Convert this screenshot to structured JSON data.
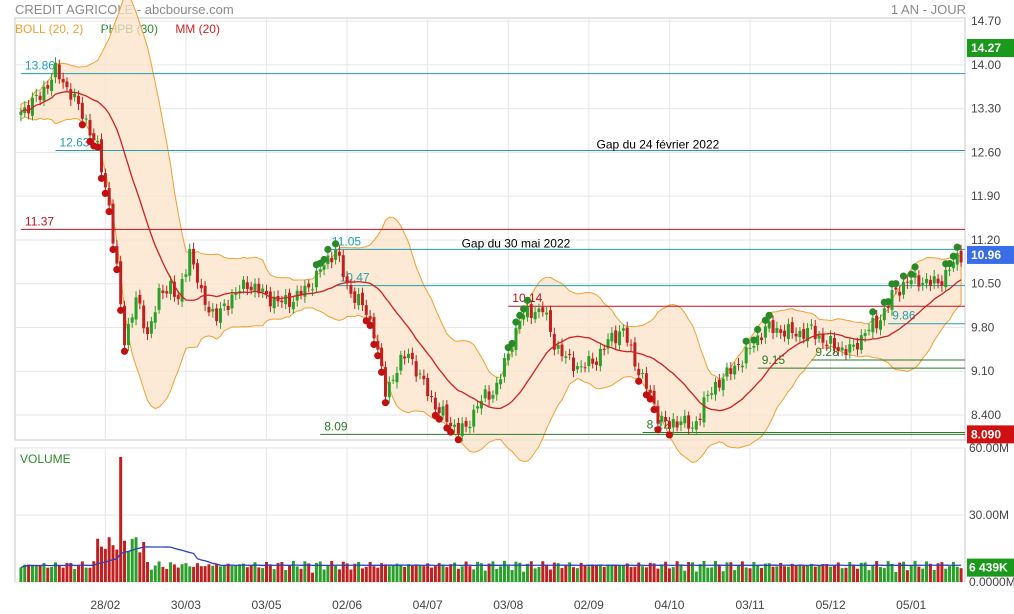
{
  "header": {
    "title": "CREDIT AGRICOLE - abcbourse.com",
    "period": "1 AN - JOUR"
  },
  "legend": [
    {
      "label": "BOLL (20, 2)",
      "color": "#f0a030"
    },
    {
      "label": "PHPB (30)",
      "color": "#2a8a2a"
    },
    {
      "label": "MM (20)",
      "color": "#d02020"
    }
  ],
  "chart_data": [
    {
      "type": "line",
      "name": "price",
      "ylim": [
        8.0,
        14.75
      ],
      "price_ticks": [
        "14.70",
        "14.00",
        "13.30",
        "12.60",
        "11.90",
        "11.20",
        "10.50",
        "9.80",
        "9.10",
        "8.400"
      ],
      "price_tick_values": [
        14.7,
        14.0,
        13.3,
        12.6,
        11.9,
        11.2,
        10.5,
        9.8,
        9.1,
        8.4
      ],
      "x_tick_labels": [
        "28/02",
        "30/03",
        "03/05",
        "02/06",
        "04/07",
        "03/08",
        "02/09",
        "04/10",
        "03/11",
        "05/12",
        "05/01"
      ],
      "x_tick_index": [
        22,
        43,
        64,
        85,
        106,
        127,
        148,
        169,
        190,
        211,
        232
      ],
      "n_sessions": 246,
      "close_anchors": [
        [
          0,
          13.25
        ],
        [
          5,
          13.5
        ],
        [
          9,
          13.9
        ],
        [
          13,
          13.55
        ],
        [
          17,
          13.1
        ],
        [
          20,
          12.65
        ],
        [
          23,
          11.75
        ],
        [
          25,
          10.7
        ],
        [
          27,
          9.6
        ],
        [
          30,
          10.25
        ],
        [
          33,
          9.7
        ],
        [
          36,
          10.3
        ],
        [
          39,
          10.5
        ],
        [
          41,
          10.2
        ],
        [
          44,
          11.05
        ],
        [
          47,
          10.3
        ],
        [
          51,
          9.95
        ],
        [
          55,
          10.3
        ],
        [
          59,
          10.5
        ],
        [
          63,
          10.35
        ],
        [
          67,
          10.2
        ],
        [
          71,
          10.25
        ],
        [
          75,
          10.45
        ],
        [
          79,
          10.8
        ],
        [
          82,
          11.05
        ],
        [
          85,
          10.45
        ],
        [
          89,
          10.15
        ],
        [
          92,
          9.75
        ],
        [
          95,
          8.75
        ],
        [
          98,
          9.15
        ],
        [
          101,
          9.4
        ],
        [
          104,
          9.0
        ],
        [
          108,
          8.55
        ],
        [
          112,
          8.25
        ],
        [
          116,
          8.15
        ],
        [
          119,
          8.6
        ],
        [
          123,
          8.75
        ],
        [
          127,
          9.35
        ],
        [
          130,
          9.95
        ],
        [
          133,
          10.05
        ],
        [
          136,
          10.1
        ],
        [
          139,
          9.55
        ],
        [
          142,
          9.3
        ],
        [
          146,
          9.15
        ],
        [
          150,
          9.3
        ],
        [
          154,
          9.65
        ],
        [
          157,
          9.75
        ],
        [
          160,
          9.25
        ],
        [
          163,
          8.85
        ],
        [
          166,
          8.4
        ],
        [
          169,
          8.2
        ],
        [
          172,
          8.35
        ],
        [
          175,
          8.15
        ],
        [
          178,
          8.6
        ],
        [
          182,
          8.95
        ],
        [
          186,
          9.15
        ],
        [
          190,
          9.45
        ],
        [
          194,
          9.8
        ],
        [
          198,
          9.75
        ],
        [
          202,
          9.7
        ],
        [
          206,
          9.75
        ],
        [
          210,
          9.55
        ],
        [
          214,
          9.45
        ],
        [
          217,
          9.45
        ],
        [
          220,
          9.75
        ],
        [
          223,
          9.85
        ],
        [
          227,
          10.3
        ],
        [
          231,
          10.55
        ],
        [
          235,
          10.55
        ],
        [
          239,
          10.5
        ],
        [
          242,
          10.75
        ],
        [
          245,
          10.96
        ]
      ],
      "last_price": {
        "label": "14.27",
        "value": 14.27,
        "color": "#1a9a1a"
      },
      "current_price": {
        "label": "10.96",
        "value": 10.96,
        "color": "#3a6ee8"
      },
      "low_price": {
        "label": "8.090",
        "value": 8.09,
        "color": "#d01010"
      },
      "levels": [
        {
          "label": "13.86",
          "value": 13.86,
          "color": "#20a0b0",
          "from": 0
        },
        {
          "label": "12.63",
          "value": 12.63,
          "color": "#20a0b0",
          "from": 9
        },
        {
          "label": "11.37",
          "value": 11.37,
          "color": "#c01020",
          "from": 0
        },
        {
          "label": "11.05",
          "value": 11.05,
          "color": "#20a0b0",
          "from": 80
        },
        {
          "label": "10.47",
          "value": 10.47,
          "color": "#20a0b0",
          "from": 82
        },
        {
          "label": "10.14",
          "value": 10.14,
          "color": "#c01020",
          "from": 127
        },
        {
          "label": "9.86",
          "value": 9.86,
          "color": "#20a0b0",
          "from": 226
        },
        {
          "label": "9.28",
          "value": 9.28,
          "color": "#2a7a2a",
          "from": 206
        },
        {
          "label": "9.15",
          "value": 9.15,
          "color": "#2a7a2a",
          "from": 192
        },
        {
          "label": "8.12",
          "value": 8.12,
          "color": "#2a7a2a",
          "from": 162
        },
        {
          "label": "8.09",
          "value": 8.09,
          "color": "#2a7a2a",
          "from": 78
        }
      ],
      "annotations": [
        {
          "text": "Gap du 24 février 2022",
          "x_index": 166,
          "value": 12.63
        },
        {
          "text": "Gap du 30 mai 2022",
          "x_index": 129,
          "value": 11.05
        }
      ]
    },
    {
      "type": "bar",
      "name": "VOLUME",
      "ylim": [
        0,
        60
      ],
      "volume_ticks": [
        "60.00M",
        "30.00M",
        "0.0000M"
      ],
      "volume_tick_values": [
        60,
        30,
        0
      ],
      "last_volume": {
        "label": "6 439K",
        "value": 6.439,
        "color": "#1a9a1a"
      },
      "spike": {
        "index": 26,
        "value": 56
      }
    }
  ]
}
